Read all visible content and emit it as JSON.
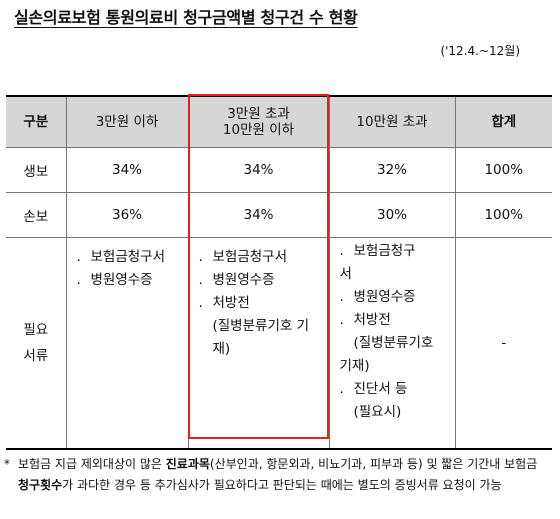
{
  "title": "실손의료보험 통원의료비 청구금액별 청구건 수 현황",
  "period": "('12.4.~12월)",
  "table": {
    "headers": [
      "구분",
      "3만원 이하",
      "3만원 초과",
      "10만원 이하",
      "10만원 초과",
      "합계"
    ],
    "rows": [
      {
        "label": "생보",
        "values": [
          "34%",
          "34%",
          "32%",
          "100%"
        ]
      },
      {
        "label": "손보",
        "values": [
          "36%",
          "34%",
          "30%",
          "100%"
        ]
      }
    ],
    "docs": {
      "label_line1": "필요",
      "label_line2": "서류",
      "col1": [
        "보험금청구서",
        "병원영수증"
      ],
      "col2": [
        "보험금청구서",
        "병원영수증",
        "처방전",
        "(질병분류기호 기",
        "재)"
      ],
      "col3": [
        "보험금청구",
        "서",
        "병원영수증",
        "처방전",
        "(질병분류기호",
        "기재)",
        "진단서 등",
        "(필요시)"
      ],
      "total": "-"
    }
  },
  "note": {
    "star": "*",
    "part1": "보험금 지급 제외대상이 많은 ",
    "bold1": "진료과목",
    "part2": "(산부인과, 항문외과, 비뇨기과, 피부과 등) 및 짧은 기간내 보험금 ",
    "bold2": "청구횟수",
    "part3": "가 과다한 경우 등 추가심사가 필요하다고 판단되는 때에는 별도의 증빙서류 요청이 가능"
  },
  "colors": {
    "highlight_border": "#e0221a",
    "header_bg": "#d6d6d6"
  }
}
